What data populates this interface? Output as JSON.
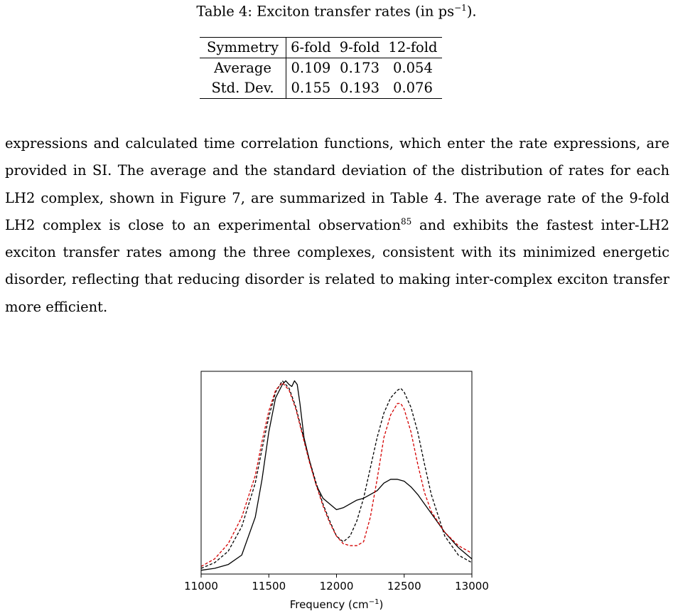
{
  "caption": {
    "prefix": "Table 4: Exciton transfer rates (in ps",
    "sup": "−1",
    "suffix": ")."
  },
  "table": {
    "headers": [
      "Symmetry",
      "6-fold",
      "9-fold",
      "12-fold"
    ],
    "rows": [
      {
        "label": "Average",
        "values": [
          "0.109",
          "0.173",
          "0.054"
        ]
      },
      {
        "label": "Std. Dev.",
        "values": [
          "0.155",
          "0.193",
          "0.076"
        ]
      }
    ]
  },
  "paragraph": {
    "part1": "expressions and calculated time correlation functions, which enter the rate expressions, are provided in SI. The average and the standard deviation of the distribution of rates for each LH2 complex, shown in Figure 7, are summarized in Table 4. The average rate of the 9-fold LH2 complex is close to an experimental observation",
    "ref": "85",
    "part2": " and exhibits the fastest inter-LH2 exciton transfer rates among the three complexes, consistent with its minimized energetic disorder, reflecting that reducing disorder is related to making inter-complex exciton transfer more efficient."
  },
  "chart_data": {
    "type": "line",
    "xlabel": "Frequency (cm",
    "xlabel_sup": "−1",
    "xlabel_suffix": ")",
    "xlim": [
      11000,
      13000
    ],
    "ylim": [
      0,
      1.07
    ],
    "xticks": [
      "11000",
      "11500",
      "12000",
      "12500",
      "13000"
    ],
    "y_ticks_shown": false,
    "grid": false,
    "series": [
      {
        "color": "#000000",
        "style": "solid",
        "x": [
          11000,
          11100,
          11200,
          11300,
          11400,
          11450,
          11500,
          11550,
          11600,
          11625,
          11650,
          11670,
          11690,
          11710,
          11730,
          11760,
          11800,
          11850,
          11900,
          11950,
          12000,
          12050,
          12100,
          12150,
          12200,
          12250,
          12300,
          12350,
          12400,
          12450,
          12500,
          12550,
          12600,
          12650,
          12700,
          12800,
          12900,
          13000
        ],
        "y": [
          0.02,
          0.03,
          0.05,
          0.1,
          0.3,
          0.5,
          0.75,
          0.93,
          1.0,
          1.02,
          1.0,
          0.99,
          1.02,
          1.0,
          0.9,
          0.72,
          0.6,
          0.47,
          0.4,
          0.37,
          0.34,
          0.35,
          0.37,
          0.39,
          0.4,
          0.42,
          0.44,
          0.48,
          0.5,
          0.5,
          0.49,
          0.46,
          0.42,
          0.37,
          0.32,
          0.22,
          0.14,
          0.08
        ]
      },
      {
        "color": "#000000",
        "style": "dashed",
        "x": [
          11000,
          11100,
          11200,
          11300,
          11400,
          11450,
          11500,
          11550,
          11600,
          11650,
          11700,
          11750,
          11800,
          11850,
          11900,
          11950,
          12000,
          12050,
          12100,
          12150,
          12200,
          12250,
          12300,
          12350,
          12400,
          12450,
          12475,
          12500,
          12550,
          12600,
          12650,
          12700,
          12800,
          12900,
          13000
        ],
        "y": [
          0.03,
          0.06,
          0.12,
          0.25,
          0.48,
          0.66,
          0.83,
          0.96,
          1.02,
          0.98,
          0.88,
          0.74,
          0.6,
          0.48,
          0.37,
          0.28,
          0.2,
          0.17,
          0.2,
          0.28,
          0.4,
          0.56,
          0.72,
          0.85,
          0.93,
          0.97,
          0.98,
          0.96,
          0.88,
          0.75,
          0.58,
          0.42,
          0.2,
          0.1,
          0.06
        ]
      },
      {
        "color": "#d40000",
        "style": "dashed",
        "x": [
          11000,
          11100,
          11200,
          11300,
          11400,
          11450,
          11500,
          11550,
          11600,
          11650,
          11700,
          11750,
          11800,
          11850,
          11900,
          11950,
          12000,
          12050,
          12100,
          12150,
          12200,
          12250,
          12300,
          12350,
          12400,
          12450,
          12475,
          12500,
          12550,
          12600,
          12650,
          12700,
          12800,
          12900,
          13000
        ],
        "y": [
          0.04,
          0.08,
          0.16,
          0.3,
          0.52,
          0.7,
          0.86,
          0.97,
          1.01,
          0.97,
          0.87,
          0.73,
          0.59,
          0.47,
          0.36,
          0.27,
          0.2,
          0.16,
          0.15,
          0.15,
          0.17,
          0.3,
          0.5,
          0.72,
          0.84,
          0.9,
          0.9,
          0.87,
          0.75,
          0.58,
          0.43,
          0.33,
          0.22,
          0.15,
          0.11
        ]
      }
    ]
  }
}
